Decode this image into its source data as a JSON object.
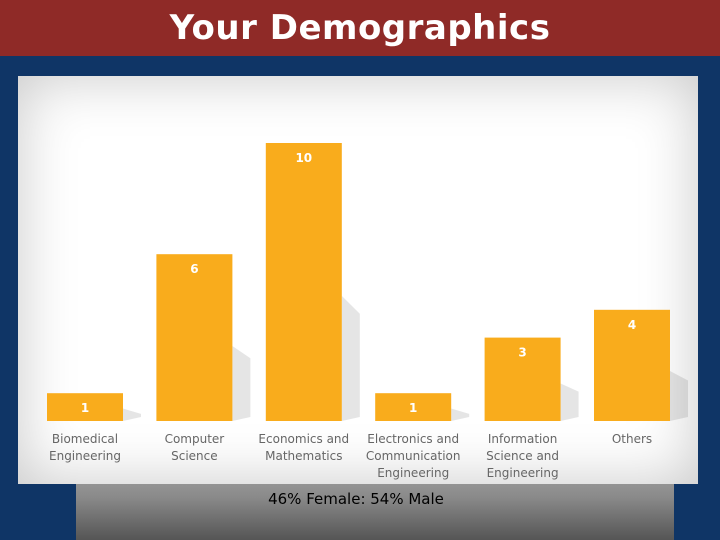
{
  "header": {
    "title": "Your Demographics"
  },
  "footer": {
    "caption": "46% Female: 54% Male"
  },
  "colors": {
    "bar": "#f9ac1c",
    "title_bg": "#8f2a27",
    "page_bg": "#0f3566"
  },
  "chart_data": {
    "type": "bar",
    "title": "",
    "xlabel": "",
    "ylabel": "",
    "ylim": [
      0,
      10
    ],
    "grid": false,
    "categories": [
      "Biomedical Engineering",
      "Computer Science",
      "Economics and Mathematics",
      "Electronics and Communication Engineering",
      "Information Science and Engineering",
      "Others"
    ],
    "values": [
      1,
      6,
      10,
      1,
      3,
      4
    ]
  }
}
